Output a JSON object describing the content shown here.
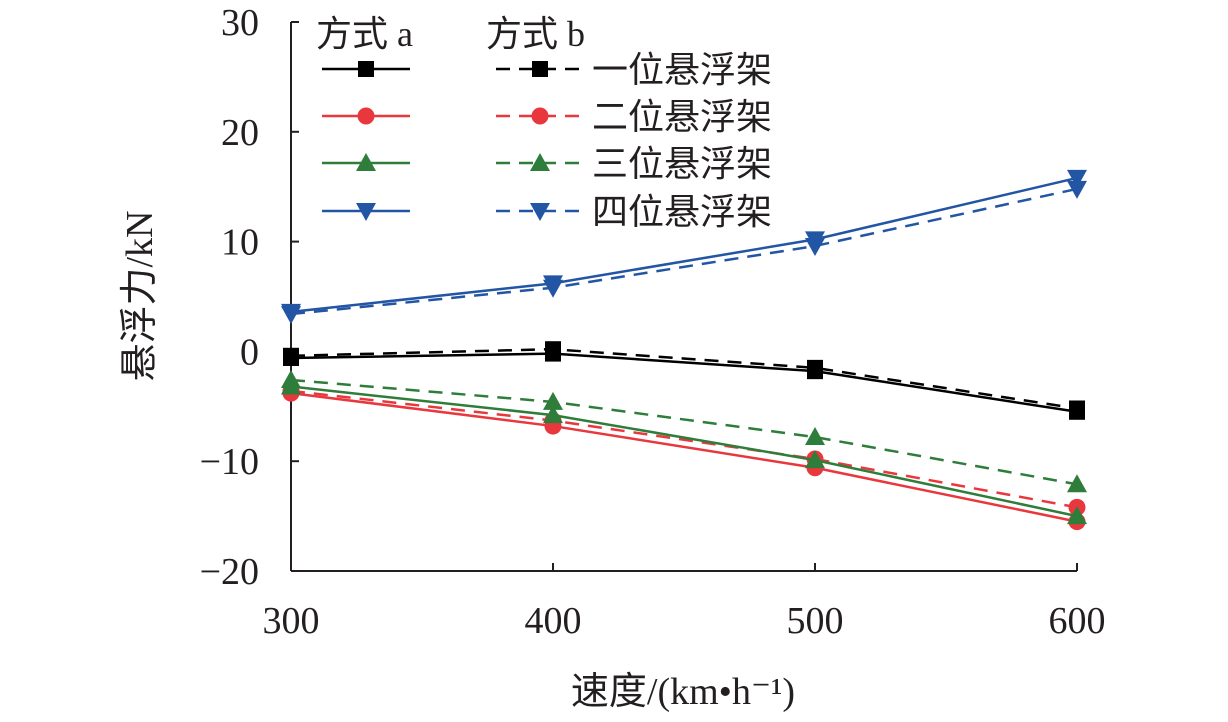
{
  "chart_data": {
    "type": "line",
    "title": "",
    "xlabel": "速度/(km•h⁻¹)",
    "ylabel": "悬浮力/kN",
    "x": [
      300,
      400,
      500,
      600
    ],
    "xlim": [
      300,
      600
    ],
    "ylim": [
      -20,
      30
    ],
    "xticks": [
      300,
      400,
      500,
      600
    ],
    "yticks": [
      -20,
      -10,
      0,
      10,
      20,
      30
    ],
    "xtick_labels": [
      "300",
      "400",
      "500",
      "600"
    ],
    "ytick_labels": [
      "−20",
      "−10",
      "0",
      "10",
      "20",
      "30"
    ],
    "grid": false,
    "legend": {
      "position": "top-left",
      "headers": [
        "方式 a",
        "方式 b"
      ],
      "entries": [
        "一位悬浮架",
        "二位悬浮架",
        "三位悬浮架",
        "四位悬浮架"
      ]
    },
    "series": [
      {
        "name": "一位悬浮架 方式 a",
        "group": "方式 a",
        "dashed": false,
        "marker": "square",
        "color": "#000000",
        "values": [
          -0.6,
          -0.2,
          -1.8,
          -5.5
        ]
      },
      {
        "name": "一位悬浮架 方式 b",
        "group": "方式 b",
        "dashed": true,
        "marker": "square",
        "color": "#000000",
        "values": [
          -0.4,
          0.2,
          -1.5,
          -5.2
        ]
      },
      {
        "name": "二位悬浮架 方式 a",
        "group": "方式 a",
        "dashed": false,
        "marker": "circle",
        "color": "#e8383d",
        "values": [
          -3.8,
          -6.8,
          -10.6,
          -15.5
        ]
      },
      {
        "name": "二位悬浮架 方式 b",
        "group": "方式 b",
        "dashed": true,
        "marker": "circle",
        "color": "#e8383d",
        "values": [
          -3.6,
          -6.3,
          -9.8,
          -14.2
        ]
      },
      {
        "name": "三位悬浮架 方式 a",
        "group": "方式 a",
        "dashed": false,
        "marker": "triangle-up",
        "color": "#2e7d3a",
        "values": [
          -3.2,
          -5.8,
          -9.9,
          -15.0
        ]
      },
      {
        "name": "三位悬浮架 方式 b",
        "group": "方式 b",
        "dashed": true,
        "marker": "triangle-up",
        "color": "#2e7d3a",
        "values": [
          -2.6,
          -4.6,
          -7.8,
          -12.1
        ]
      },
      {
        "name": "四位悬浮架 方式 a",
        "group": "方式 a",
        "dashed": false,
        "marker": "triangle-down",
        "color": "#2255a4",
        "values": [
          3.6,
          6.2,
          10.2,
          15.8
        ]
      },
      {
        "name": "四位悬浮架 方式 b",
        "group": "方式 b",
        "dashed": true,
        "marker": "triangle-down",
        "color": "#2255a4",
        "values": [
          3.4,
          5.8,
          9.6,
          14.8
        ]
      }
    ]
  }
}
